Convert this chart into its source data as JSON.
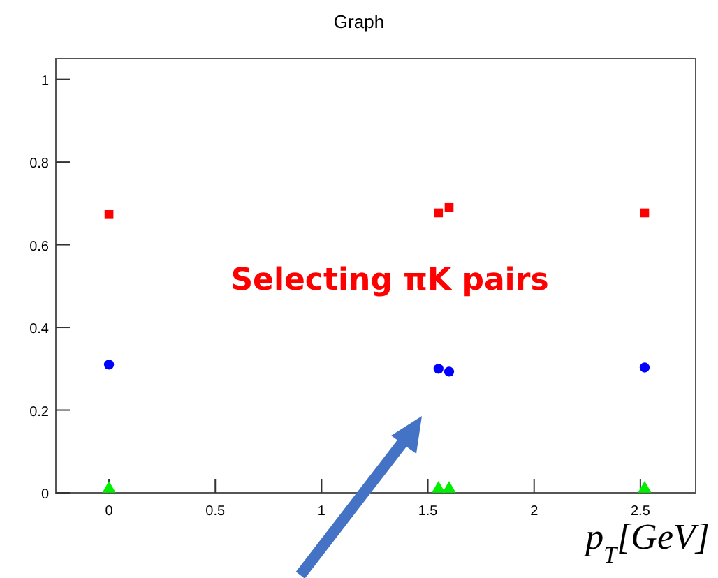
{
  "chart_data": {
    "type": "scatter",
    "title": "Graph",
    "xlabel": "p$_{T}$[GeV]",
    "annotations": [
      "Selecting πK pairs"
    ],
    "xlim": [
      -0.25,
      2.76
    ],
    "xticks": [
      0,
      0.5,
      1,
      1.5,
      2,
      2.5
    ],
    "ylim": [
      0,
      1.05
    ],
    "yticks": [
      0,
      0.2,
      0.4,
      0.6,
      0.8,
      1
    ],
    "grid": false,
    "series": [
      {
        "color": "#ff0000",
        "marker": "square",
        "x": [
          0,
          1.55,
          1.6,
          2.52
        ],
        "values": [
          0.673,
          0.677,
          0.69,
          0.677
        ]
      },
      {
        "color": "#0000ff",
        "marker": "circle",
        "x": [
          0,
          1.55,
          1.6,
          2.52
        ],
        "values": [
          0.31,
          0.3,
          0.293,
          0.303
        ]
      },
      {
        "color": "#00ee00",
        "marker": "triangle",
        "x": [
          0,
          1.55,
          1.6,
          2.52
        ],
        "values": [
          0.01,
          0.01,
          0.01,
          0.01
        ]
      }
    ]
  }
}
